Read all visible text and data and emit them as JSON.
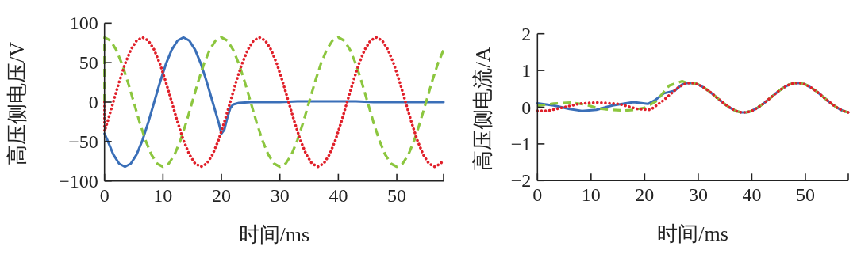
{
  "chart_data": [
    {
      "type": "line",
      "xlabel": "时间/ms",
      "ylabel": "高压侧电压/V",
      "xlim": [
        0,
        58
      ],
      "ylim": [
        -100,
        100
      ],
      "xticks": [
        0,
        10,
        20,
        30,
        40,
        50,
        {
          "value": 58,
          "label": null
        }
      ],
      "yticks": [
        {
          "value": -100,
          "label": "−100"
        },
        {
          "value": -50,
          "label": "−50"
        },
        0,
        50,
        100
      ],
      "series": [
        {
          "color": "#3a6fb8",
          "line_style": "solid",
          "x": [
            0,
            0.5,
            1.5,
            2.5,
            3.5,
            4.5,
            5.5,
            6.5,
            7.5,
            8.5,
            9.5,
            10.5,
            11.5,
            12.5,
            13.5,
            14.5,
            15.5,
            16.5,
            17.5,
            18.5,
            19.5,
            20,
            20.5,
            21,
            21.5,
            22,
            23,
            25,
            30,
            33,
            43,
            46,
            58
          ],
          "values": [
            -40,
            -48.2,
            -66.3,
            -78,
            -82,
            -78,
            -66.3,
            -48.2,
            -25.3,
            0,
            25.3,
            48.2,
            66.3,
            78,
            82,
            78,
            66.3,
            48.2,
            25.3,
            0,
            -25.3,
            -40,
            -35,
            -20,
            -8,
            -3,
            -1,
            0,
            0,
            1,
            1,
            0,
            0
          ]
        },
        {
          "color": "#8cc63f",
          "line_style": "dashed",
          "x": [
            0,
            0,
            1,
            2,
            3,
            4,
            5,
            6,
            7,
            8,
            9,
            10,
            11,
            12,
            13,
            14,
            15,
            16,
            17,
            18,
            19,
            20,
            21,
            22,
            23,
            24,
            25,
            26,
            27,
            28,
            29,
            30,
            31,
            32,
            33,
            34,
            35,
            36,
            37,
            38,
            39,
            40,
            41,
            42,
            43,
            44,
            45,
            46,
            47,
            48,
            49,
            50,
            51,
            52,
            53,
            54,
            55,
            56,
            57,
            58
          ],
          "values": [
            0,
            82,
            78,
            66.3,
            48.2,
            25.3,
            0,
            -25.3,
            -48.2,
            -66.3,
            -78,
            -82,
            -78,
            -66.3,
            -48.2,
            -25.3,
            0,
            25.3,
            48.2,
            66.3,
            78,
            82,
            78,
            66.3,
            48.2,
            25.3,
            0,
            -25.3,
            -48.2,
            -66.3,
            -78,
            -82,
            -78,
            -66.3,
            -48.2,
            -25.3,
            0,
            25.3,
            48.2,
            66.3,
            78,
            82,
            78,
            66.3,
            48.2,
            25.3,
            0,
            -25.3,
            -48.2,
            -66.3,
            -78,
            -82,
            -78,
            -66.3,
            -48.2,
            -25.3,
            0,
            25.3,
            48.2,
            66.3
          ]
        },
        {
          "color": "#e0202a",
          "line_style": "dotted",
          "x": [
            0,
            0,
            0.5,
            1.5,
            2.5,
            3.5,
            4.5,
            5.5,
            6.5,
            7.5,
            8.5,
            9.5,
            10.5,
            11.5,
            12.5,
            13.5,
            14.5,
            15.5,
            16.5,
            17.5,
            18.5,
            19.5,
            20.5,
            21.5,
            22.5,
            23.5,
            24.5,
            25.5,
            26.5,
            27.5,
            28.5,
            29.5,
            30.5,
            31.5,
            32.5,
            33.5,
            34.5,
            35.5,
            36.5,
            37.5,
            38.5,
            39.5,
            40.5,
            41.5,
            42.5,
            43.5,
            44.5,
            45.5,
            46.5,
            47.5,
            48.5,
            49.5,
            50.5,
            51.5,
            52.5,
            53.5,
            54.5,
            55.5,
            56.5,
            57.5,
            58
          ],
          "values": [
            0,
            -37,
            -25.3,
            0,
            25.3,
            48.2,
            66.3,
            78,
            82,
            78,
            66.3,
            48.2,
            25.3,
            0,
            -25.3,
            -48.2,
            -66.3,
            -78,
            -82,
            -78,
            -66.3,
            -48.2,
            -25.3,
            0,
            25.3,
            48.2,
            66.3,
            78,
            82,
            78,
            66.3,
            48.2,
            25.3,
            0,
            -25.3,
            -48.2,
            -66.3,
            -78,
            -82,
            -78,
            -66.3,
            -48.2,
            -25.3,
            0,
            25.3,
            48.2,
            66.3,
            78,
            82,
            78,
            66.3,
            48.2,
            25.3,
            0,
            -25.3,
            -48.2,
            -66.3,
            -78,
            -82,
            -78,
            -73
          ]
        }
      ]
    },
    {
      "type": "line",
      "xlabel": "时间/ms",
      "ylabel": "高压侧电流/A",
      "xlim": [
        0,
        58
      ],
      "ylim": [
        -2,
        2
      ],
      "xticks": [
        0,
        10,
        20,
        30,
        40,
        50,
        {
          "value": 58,
          "label": null
        }
      ],
      "yticks": [
        {
          "value": -2,
          "label": "−2"
        },
        {
          "value": -1,
          "label": "−1"
        },
        0,
        1,
        2
      ],
      "series": [
        {
          "color": "#3a6fb8",
          "line_style": "solid",
          "x": [
            0,
            3,
            6,
            8.3,
            11,
            14,
            17.9,
            20.6,
            22,
            23.6,
            25.6,
            27,
            28,
            29,
            30,
            31,
            32,
            33,
            34,
            35,
            36,
            37,
            38,
            39,
            40,
            41,
            42,
            43,
            44,
            45,
            46,
            47,
            48,
            49,
            50,
            51,
            52,
            53,
            54,
            55,
            56,
            57,
            58
          ],
          "values": [
            0.11,
            0.05,
            -0.05,
            -0.1,
            -0.07,
            0.05,
            0.14,
            0.09,
            0.2,
            0.38,
            0.45,
            0.62,
            0.66,
            0.66,
            0.62,
            0.54,
            0.44,
            0.32,
            0.2,
            0.08,
            -0.02,
            -0.1,
            -0.14,
            -0.14,
            -0.1,
            -0.02,
            0.08,
            0.2,
            0.32,
            0.44,
            0.54,
            0.62,
            0.66,
            0.66,
            0.62,
            0.54,
            0.44,
            0.32,
            0.2,
            0.08,
            -0.02,
            -0.1,
            -0.14
          ]
        },
        {
          "color": "#8cc63f",
          "line_style": "dashed",
          "x": [
            0,
            3,
            6.3,
            9,
            11.3,
            13.5,
            16.2,
            18,
            20.1,
            22.1,
            24.6,
            27,
            28,
            29,
            30,
            31,
            32,
            33,
            34,
            35,
            36,
            37,
            38,
            39,
            40,
            41,
            42,
            43,
            44,
            45,
            46,
            47,
            48,
            49,
            50,
            51,
            52,
            53,
            54,
            55,
            56,
            57,
            58
          ],
          "values": [
            0.04,
            0.1,
            0.13,
            0.07,
            -0.03,
            -0.07,
            -0.09,
            -0.07,
            -0.01,
            0.16,
            0.59,
            0.71,
            0.66,
            0.66,
            0.62,
            0.54,
            0.44,
            0.32,
            0.2,
            0.08,
            -0.02,
            -0.1,
            -0.14,
            -0.14,
            -0.1,
            -0.02,
            0.08,
            0.2,
            0.32,
            0.44,
            0.54,
            0.62,
            0.66,
            0.66,
            0.62,
            0.54,
            0.44,
            0.32,
            0.2,
            0.08,
            -0.02,
            -0.1,
            -0.14
          ]
        },
        {
          "color": "#e0202a",
          "line_style": "dotted",
          "x": [
            0,
            1.9,
            5,
            8,
            11.3,
            15.2,
            18.7,
            21.1,
            23.6,
            26.1,
            27,
            28,
            29,
            30,
            31,
            32,
            33,
            34,
            35,
            36,
            37,
            38,
            39,
            40,
            41,
            42,
            43,
            44,
            45,
            46,
            47,
            48,
            49,
            50,
            51,
            52,
            53,
            54,
            55,
            56,
            57,
            58
          ],
          "values": [
            -0.1,
            -0.1,
            0.0,
            0.1,
            0.13,
            0.09,
            -0.05,
            -0.07,
            0.2,
            0.52,
            0.6,
            0.66,
            0.66,
            0.62,
            0.54,
            0.44,
            0.32,
            0.2,
            0.08,
            -0.02,
            -0.1,
            -0.14,
            -0.14,
            -0.1,
            -0.02,
            0.08,
            0.2,
            0.32,
            0.44,
            0.54,
            0.62,
            0.66,
            0.66,
            0.62,
            0.54,
            0.44,
            0.32,
            0.2,
            0.08,
            -0.02,
            -0.1,
            -0.14
          ]
        }
      ]
    }
  ]
}
